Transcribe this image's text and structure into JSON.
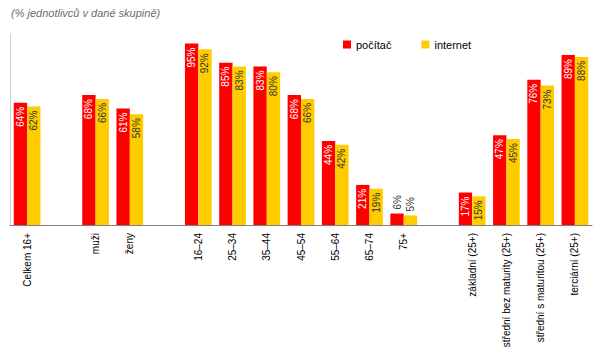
{
  "chart_data": {
    "type": "bar",
    "title": "(% jednotlivců v dané skupině)",
    "categories": [
      "Celkem 16+",
      null,
      "muži",
      "ženy",
      null,
      "16–24",
      "25–34",
      "35–44",
      "45–54",
      "55–64",
      "65–74",
      "75+",
      null,
      "základní (25+)",
      "střední bez maturity (25+)",
      "střední s maturitou (25+)",
      "terciární (25+)"
    ],
    "series": [
      {
        "name": "počítač",
        "color": "#ff0000",
        "values": [
          64,
          null,
          68,
          61,
          null,
          95,
          85,
          83,
          68,
          44,
          21,
          6,
          null,
          17,
          47,
          76,
          89
        ],
        "value_labels": [
          "64%",
          null,
          "68%",
          "61%",
          null,
          "95%",
          "85%",
          "83%",
          "68%",
          "44%",
          "21%",
          "6%",
          null,
          "17%",
          "47%",
          "76%",
          "89%"
        ]
      },
      {
        "name": "internet",
        "color": "#ffcc00",
        "values": [
          62,
          null,
          66,
          58,
          null,
          92,
          83,
          80,
          66,
          42,
          19,
          5,
          null,
          15,
          45,
          73,
          88
        ],
        "value_labels": [
          "62%",
          null,
          "66%",
          "58%",
          null,
          "92%",
          "83%",
          "80%",
          "66%",
          "42%",
          "19%",
          "5%",
          null,
          "15%",
          "45%",
          "73%",
          "88%"
        ]
      }
    ],
    "ylim": [
      0,
      100
    ],
    "data_labels": true,
    "tick_labels": "x",
    "legend": "top"
  }
}
